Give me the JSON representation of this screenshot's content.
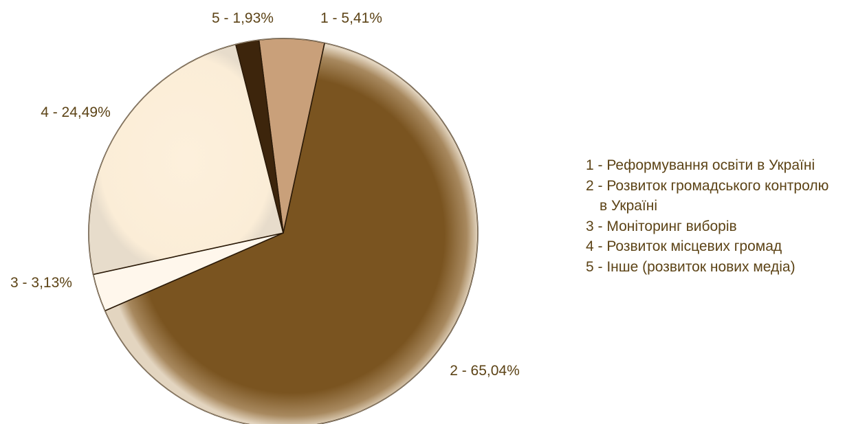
{
  "chart_data": {
    "type": "pie",
    "slices": [
      {
        "label": "1 - 5,41%",
        "value": 5.41,
        "color": "#c9a07a"
      },
      {
        "label": "2 - 65,04%",
        "value": 65.04,
        "color": "#7a5420"
      },
      {
        "label": "3 - 3,13%",
        "value": 3.13,
        "color": "#fff7ec"
      },
      {
        "label": "4 - 24,49%",
        "value": 24.49,
        "color": "#fdf0dc"
      },
      {
        "label": "5 - 1,93%",
        "value": 1.93,
        "color": "#3d250c"
      }
    ],
    "legend": {
      "placement": "right",
      "entries": [
        {
          "lines": [
            "1 - Реформування освіти в Україні"
          ]
        },
        {
          "lines": [
            "2 - Розвиток громадського контролю",
            "в Україні"
          ]
        },
        {
          "lines": [
            "3 - Моніторинг виборів"
          ]
        },
        {
          "lines": [
            "4 - Розвиток місцевих громад"
          ]
        },
        {
          "lines": [
            "5 - Інше (розвиток нових медіа)"
          ]
        }
      ]
    },
    "text_color": "#5c4316"
  }
}
